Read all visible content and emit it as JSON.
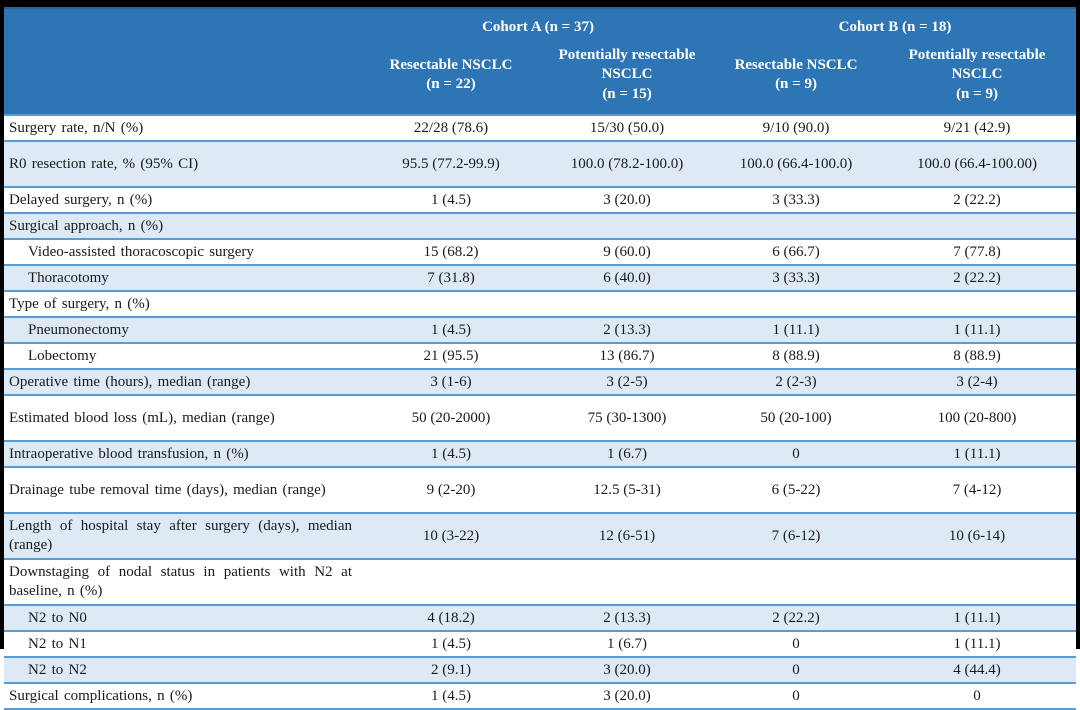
{
  "table": {
    "cohort_headers": [
      "Cohort A (n = 37)",
      "Cohort B (n = 18)"
    ],
    "columns": [
      {
        "name": "Resectable NSCLC",
        "n": "(n = 22)"
      },
      {
        "name": "Potentially resectable NSCLC",
        "n": "(n = 15)"
      },
      {
        "name": "Resectable NSCLC",
        "n": "(n = 9)"
      },
      {
        "name": "Potentially resectable NSCLC",
        "n": "(n = 9)"
      }
    ],
    "rows": [
      {
        "label": "Surgery rate, n/N (%)",
        "indent": false,
        "tall": false,
        "section": false,
        "values": [
          "22/28 (78.6)",
          "15/30 (50.0)",
          "9/10 (90.0)",
          "9/21 (42.9)"
        ]
      },
      {
        "label": "R0 resection rate, % (95% CI)",
        "indent": false,
        "tall": true,
        "section": false,
        "values": [
          "95.5 (77.2-99.9)",
          "100.0 (78.2-100.0)",
          "100.0 (66.4-100.0)",
          "100.0 (66.4-100.00)"
        ]
      },
      {
        "label": "Delayed surgery, n (%)",
        "indent": false,
        "tall": false,
        "section": false,
        "values": [
          "1 (4.5)",
          "3 (20.0)",
          "3 (33.3)",
          "2 (22.2)"
        ]
      },
      {
        "label": "Surgical approach, n (%)",
        "indent": false,
        "tall": false,
        "section": true,
        "values": [
          "",
          "",
          "",
          ""
        ]
      },
      {
        "label": "Video-assisted thoracoscopic surgery",
        "indent": true,
        "tall": false,
        "section": false,
        "values": [
          "15 (68.2)",
          "9 (60.0)",
          "6 (66.7)",
          "7 (77.8)"
        ]
      },
      {
        "label": "Thoracotomy",
        "indent": true,
        "tall": false,
        "section": false,
        "values": [
          "7 (31.8)",
          "6 (40.0)",
          "3 (33.3)",
          "2 (22.2)"
        ]
      },
      {
        "label": "Type of surgery, n (%)",
        "indent": false,
        "tall": false,
        "section": true,
        "values": [
          "",
          "",
          "",
          ""
        ]
      },
      {
        "label": "Pneumonectomy",
        "indent": true,
        "tall": false,
        "section": false,
        "values": [
          "1 (4.5)",
          "2 (13.3)",
          "1 (11.1)",
          "1 (11.1)"
        ]
      },
      {
        "label": "Lobectomy",
        "indent": true,
        "tall": false,
        "section": false,
        "values": [
          "21 (95.5)",
          "13 (86.7)",
          "8 (88.9)",
          "8 (88.9)"
        ]
      },
      {
        "label": "Operative time (hours), median (range)",
        "indent": false,
        "tall": false,
        "section": false,
        "values": [
          "3 (1-6)",
          "3 (2-5)",
          "2 (2-3)",
          "3 (2-4)"
        ]
      },
      {
        "label": "Estimated blood loss (mL), median (range)",
        "indent": false,
        "tall": true,
        "section": false,
        "values": [
          "50 (20-2000)",
          "75 (30-1300)",
          "50 (20-100)",
          "100 (20-800)"
        ]
      },
      {
        "label": "Intraoperative blood transfusion, n (%)",
        "indent": false,
        "tall": false,
        "section": false,
        "values": [
          "1 (4.5)",
          "1 (6.7)",
          "0",
          "1 (11.1)"
        ]
      },
      {
        "label": "Drainage tube removal time (days), median (range)",
        "indent": false,
        "tall": true,
        "section": false,
        "values": [
          "9 (2-20)",
          "12.5 (5-31)",
          "6 (5-22)",
          "7 (4-12)"
        ]
      },
      {
        "label": "Length of hospital stay after surgery (days), median (range)",
        "indent": false,
        "tall": true,
        "section": false,
        "values": [
          "10 (3-22)",
          "12 (6-51)",
          "7 (6-12)",
          "10 (6-14)"
        ]
      },
      {
        "label": "Downstaging of nodal status in patients with N2 at baseline, n (%)",
        "indent": false,
        "tall": true,
        "section": true,
        "values": [
          "",
          "",
          "",
          ""
        ]
      },
      {
        "label": "N2 to N0",
        "indent": true,
        "tall": false,
        "section": false,
        "values": [
          "4 (18.2)",
          "2 (13.3)",
          "2 (22.2)",
          "1 (11.1)"
        ]
      },
      {
        "label": "N2 to N1",
        "indent": true,
        "tall": false,
        "section": false,
        "values": [
          "1 (4.5)",
          "1 (6.7)",
          "0",
          "1 (11.1)"
        ]
      },
      {
        "label": "N2 to N2",
        "indent": true,
        "tall": false,
        "section": false,
        "values": [
          "2 (9.1)",
          "3 (20.0)",
          "0",
          "4 (44.4)"
        ]
      },
      {
        "label": "Surgical complications, n (%)",
        "indent": false,
        "tall": false,
        "section": false,
        "values": [
          "1 (4.5)",
          "3 (20.0)",
          "0",
          "0"
        ]
      }
    ],
    "colors": {
      "header_blue": "#2E75B6",
      "row_divider_blue": "#5B9BD5",
      "alt_row_blue": "#DEE9F6",
      "frame_black": "#000000"
    }
  }
}
